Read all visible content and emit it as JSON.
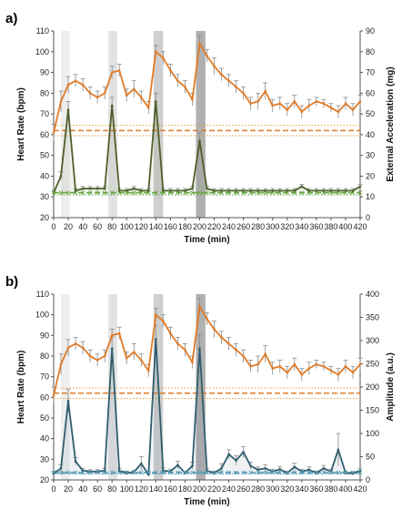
{
  "chart_data": [
    {
      "panel_label": "a)",
      "type": "line",
      "xlabel": "Time (min)",
      "ylabel": "Heart Rate (bpm)",
      "y2label": "External Acceleration (mg)",
      "xlim": [
        0,
        420
      ],
      "ylim": [
        20,
        110
      ],
      "y2lim": [
        0,
        90
      ],
      "xticks": [
        "0",
        "20",
        "40",
        "60",
        "80",
        "100",
        "120",
        "140",
        "160",
        "180",
        "200",
        "220",
        "240",
        "260",
        "280",
        "300",
        "320",
        "340",
        "360",
        "380",
        "400",
        "420"
      ],
      "yticks": [
        "20",
        "30",
        "40",
        "50",
        "60",
        "70",
        "80",
        "90",
        "100",
        "110"
      ],
      "y2ticks": [
        "0",
        "10",
        "20",
        "30",
        "40",
        "50",
        "60",
        "70",
        "80",
        "90"
      ],
      "shaded_intervals": [
        [
          10,
          22
        ],
        [
          75,
          87
        ],
        [
          137,
          150
        ],
        [
          195,
          208
        ]
      ],
      "shaded_colors": [
        "#eeeeee",
        "#e2e2e2",
        "#cfcfcf",
        "#b0b0b0"
      ],
      "series": [
        {
          "axis": "left",
          "color": "#e07b28",
          "x": [
            0,
            10,
            20,
            30,
            40,
            50,
            60,
            70,
            80,
            90,
            100,
            110,
            120,
            130,
            140,
            150,
            160,
            170,
            180,
            190,
            200,
            210,
            220,
            230,
            240,
            250,
            260,
            270,
            280,
            290,
            300,
            310,
            320,
            330,
            340,
            350,
            360,
            370,
            380,
            390,
            400,
            410,
            420
          ],
          "y": [
            61,
            76,
            84,
            86,
            84,
            80,
            78,
            80,
            90,
            91,
            79,
            82,
            78,
            73,
            100,
            97,
            91,
            86,
            83,
            77,
            104,
            98,
            93,
            89,
            86,
            83,
            80,
            75,
            76,
            81,
            74,
            75,
            72,
            76,
            71,
            74,
            76,
            75,
            73,
            71,
            75,
            72,
            76
          ],
          "err": [
            4,
            5,
            4,
            3,
            3,
            3,
            3,
            3,
            3,
            3,
            3,
            4,
            3,
            3,
            3,
            3,
            3,
            3,
            3,
            3,
            4,
            3,
            4,
            3,
            3,
            3,
            3,
            3,
            4,
            4,
            3,
            3,
            3,
            3,
            3,
            3,
            2,
            2,
            2,
            3,
            3,
            3,
            3
          ]
        },
        {
          "axis": "right",
          "color": "#4e5f2a",
          "x": [
            0,
            10,
            20,
            30,
            40,
            50,
            60,
            70,
            80,
            90,
            100,
            110,
            120,
            130,
            140,
            150,
            160,
            170,
            180,
            190,
            200,
            210,
            220,
            230,
            240,
            250,
            260,
            270,
            280,
            290,
            300,
            310,
            320,
            330,
            340,
            350,
            360,
            370,
            380,
            390,
            400,
            410,
            420
          ],
          "y": [
            12,
            20,
            52,
            13,
            14,
            14,
            14,
            14,
            54,
            13,
            13,
            14,
            13,
            13,
            56,
            13,
            13,
            13,
            13,
            14,
            37,
            14,
            13,
            13,
            13,
            13,
            13,
            13,
            13,
            13,
            13,
            13,
            13,
            13,
            15,
            13,
            13,
            13,
            13,
            13,
            13,
            13,
            15
          ],
          "err": [
            1,
            2,
            4,
            1,
            1,
            1,
            1,
            1,
            4,
            1,
            1,
            1,
            1,
            1,
            4,
            1,
            1,
            1,
            1,
            1,
            4,
            1,
            1,
            1,
            1,
            1,
            1,
            1,
            1,
            1,
            1,
            1,
            1,
            1,
            1,
            1,
            1,
            1,
            1,
            1,
            1,
            1,
            1
          ]
        }
      ],
      "reference_lines": [
        {
          "axis": "left",
          "y": 62,
          "style": "dashed",
          "color": "#e07b28"
        },
        {
          "axis": "left",
          "y": 59.5,
          "style": "dotted",
          "color": "#e3a13a"
        },
        {
          "axis": "left",
          "y": 64.5,
          "style": "dotted",
          "color": "#e3a13a"
        },
        {
          "axis": "right",
          "y": 12,
          "style": "dashed",
          "color": "#6aa843"
        },
        {
          "axis": "right",
          "y": 11,
          "style": "dotted",
          "color": "#6aa843"
        }
      ]
    },
    {
      "panel_label": "b)",
      "type": "line",
      "xlabel": "Time (min)",
      "ylabel": "Heart Rate (bpm)",
      "y2label": "Amplitude (a.u.)",
      "xlim": [
        0,
        420
      ],
      "ylim": [
        20,
        110
      ],
      "y2lim": [
        0,
        400
      ],
      "xticks": [
        "0",
        "20",
        "40",
        "60",
        "80",
        "100",
        "120",
        "140",
        "160",
        "180",
        "200",
        "220",
        "240",
        "260",
        "280",
        "300",
        "320",
        "340",
        "360",
        "380",
        "400",
        "420"
      ],
      "yticks": [
        "20",
        "30",
        "40",
        "50",
        "60",
        "70",
        "80",
        "90",
        "100",
        "110"
      ],
      "y2ticks": [
        "0",
        "50",
        "100",
        "150",
        "200",
        "250",
        "300",
        "350",
        "400"
      ],
      "shaded_intervals": [
        [
          10,
          22
        ],
        [
          75,
          87
        ],
        [
          137,
          150
        ],
        [
          195,
          208
        ]
      ],
      "shaded_colors": [
        "#eeeeee",
        "#e2e2e2",
        "#cfcfcf",
        "#b0b0b0"
      ],
      "series": [
        {
          "axis": "left",
          "color": "#e07b28",
          "x": [
            0,
            10,
            20,
            30,
            40,
            50,
            60,
            70,
            80,
            90,
            100,
            110,
            120,
            130,
            140,
            150,
            160,
            170,
            180,
            190,
            200,
            210,
            220,
            230,
            240,
            250,
            260,
            270,
            280,
            290,
            300,
            310,
            320,
            330,
            340,
            350,
            360,
            370,
            380,
            390,
            400,
            410,
            420
          ],
          "y": [
            61,
            76,
            84,
            86,
            84,
            80,
            78,
            80,
            90,
            91,
            79,
            82,
            78,
            73,
            100,
            97,
            91,
            86,
            83,
            77,
            104,
            98,
            93,
            89,
            86,
            83,
            80,
            75,
            76,
            81,
            74,
            75,
            72,
            76,
            71,
            74,
            76,
            75,
            73,
            71,
            75,
            72,
            76
          ],
          "err": [
            4,
            5,
            4,
            3,
            3,
            3,
            3,
            3,
            3,
            3,
            3,
            4,
            3,
            3,
            3,
            3,
            3,
            3,
            3,
            3,
            4,
            3,
            4,
            3,
            3,
            3,
            3,
            3,
            4,
            4,
            3,
            3,
            3,
            3,
            3,
            3,
            2,
            2,
            2,
            3,
            3,
            3,
            3
          ]
        },
        {
          "axis": "right",
          "color": "#2f5d6e",
          "x": [
            0,
            10,
            20,
            30,
            40,
            50,
            60,
            70,
            80,
            90,
            100,
            110,
            120,
            130,
            140,
            150,
            160,
            170,
            180,
            190,
            200,
            210,
            220,
            230,
            240,
            250,
            260,
            270,
            280,
            290,
            300,
            310,
            320,
            330,
            340,
            350,
            360,
            370,
            380,
            390,
            400,
            410,
            420
          ],
          "y": [
            14,
            25,
            170,
            40,
            20,
            18,
            18,
            20,
            283,
            20,
            15,
            17,
            35,
            12,
            303,
            20,
            18,
            32,
            15,
            30,
            283,
            20,
            15,
            25,
            55,
            42,
            60,
            30,
            22,
            25,
            18,
            23,
            15,
            28,
            18,
            22,
            15,
            25,
            18,
            65,
            15,
            14,
            20
          ],
          "err": [
            3,
            8,
            25,
            8,
            5,
            4,
            4,
            5,
            25,
            5,
            4,
            4,
            15,
            4,
            30,
            6,
            5,
            8,
            4,
            8,
            30,
            5,
            4,
            10,
            10,
            10,
            12,
            8,
            6,
            8,
            5,
            6,
            4,
            8,
            5,
            6,
            4,
            6,
            5,
            35,
            4,
            4,
            5
          ]
        }
      ],
      "reference_lines": [
        {
          "axis": "left",
          "y": 62,
          "style": "dashed",
          "color": "#e07b28"
        },
        {
          "axis": "left",
          "y": 59.5,
          "style": "dotted",
          "color": "#e3a13a"
        },
        {
          "axis": "left",
          "y": 64.5,
          "style": "dotted",
          "color": "#e3a13a"
        },
        {
          "axis": "right",
          "y": 16,
          "style": "dashed",
          "color": "#5aa0b8"
        },
        {
          "axis": "right",
          "y": 13,
          "style": "dotted",
          "color": "#5aa0b8"
        }
      ]
    }
  ]
}
